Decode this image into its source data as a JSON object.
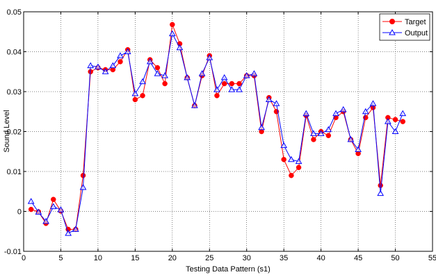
{
  "chart_data": {
    "type": "line",
    "title": "",
    "xlabel": "Testing Data Pattern (s1)",
    "ylabel": "Sound Level",
    "xlim": [
      0,
      55
    ],
    "ylim": [
      -0.01,
      0.05
    ],
    "xticks": [
      0,
      5,
      10,
      15,
      20,
      25,
      30,
      35,
      40,
      45,
      50,
      55
    ],
    "yticks": [
      -0.01,
      0,
      0.01,
      0.02,
      0.03,
      0.04,
      0.05
    ],
    "xtick_labels": [
      "0",
      "5",
      "10",
      "15",
      "20",
      "25",
      "30",
      "35",
      "40",
      "45",
      "50",
      "55"
    ],
    "ytick_labels": [
      "-0.01",
      "0",
      "0.01",
      "0.02",
      "0.03",
      "0.04",
      "0.05"
    ],
    "grid": true,
    "legend_position": "top-right",
    "x": [
      1,
      2,
      3,
      4,
      5,
      6,
      7,
      8,
      9,
      10,
      11,
      12,
      13,
      14,
      15,
      16,
      17,
      18,
      19,
      20,
      21,
      22,
      23,
      24,
      25,
      26,
      27,
      28,
      29,
      30,
      31,
      32,
      33,
      34,
      35,
      36,
      37,
      38,
      39,
      40,
      41,
      42,
      43,
      44,
      45,
      46,
      47,
      48,
      49,
      50,
      51
    ],
    "series": [
      {
        "name": "Target",
        "color": "#ff0000",
        "marker": "circle",
        "values": [
          0.0005,
          -0.0001,
          -0.003,
          0.003,
          0.0001,
          -0.0045,
          -0.0045,
          0.009,
          0.035,
          0.036,
          0.0355,
          0.0355,
          0.0375,
          0.0405,
          0.028,
          0.029,
          0.038,
          0.036,
          0.032,
          0.0468,
          0.042,
          0.0335,
          0.0265,
          0.034,
          0.039,
          0.029,
          0.032,
          0.032,
          0.032,
          0.034,
          0.034,
          0.02,
          0.0285,
          0.025,
          0.013,
          0.009,
          0.011,
          0.024,
          0.018,
          0.02,
          0.019,
          0.0235,
          0.025,
          0.018,
          0.0145,
          0.0235,
          0.026,
          0.0065,
          0.0235,
          0.023,
          0.0225
        ]
      },
      {
        "name": "Output",
        "color": "#0000ff",
        "marker": "triangle",
        "values": [
          0.0025,
          -0.0002,
          -0.0025,
          0.0012,
          0.0004,
          -0.0055,
          -0.0045,
          0.006,
          0.0365,
          0.0362,
          0.035,
          0.0365,
          0.039,
          0.04,
          0.0295,
          0.0325,
          0.0375,
          0.0345,
          0.034,
          0.0445,
          0.041,
          0.0335,
          0.0265,
          0.0345,
          0.0385,
          0.0305,
          0.0335,
          0.0305,
          0.0305,
          0.034,
          0.0345,
          0.021,
          0.028,
          0.027,
          0.0165,
          0.013,
          0.0125,
          0.0245,
          0.0195,
          0.0195,
          0.0205,
          0.0245,
          0.0255,
          0.018,
          0.0155,
          0.025,
          0.027,
          0.0045,
          0.0225,
          0.02,
          0.0245
        ]
      }
    ]
  }
}
